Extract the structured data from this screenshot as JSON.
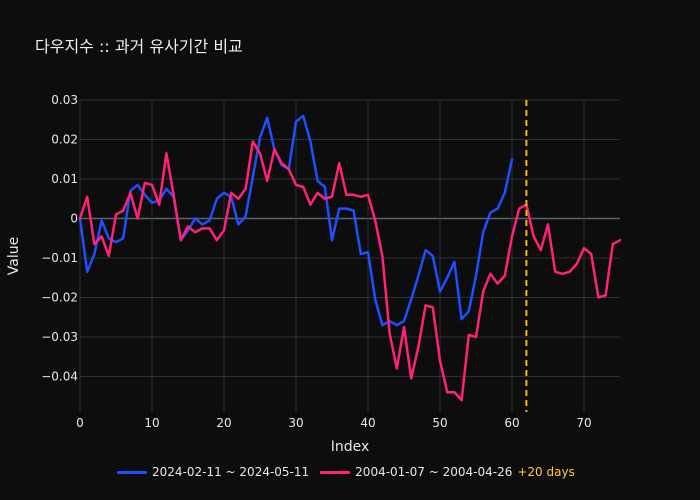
{
  "title": "다우지수 :: 과거 유사기간 비교",
  "chart_data": {
    "type": "line",
    "xlabel": "Index",
    "ylabel": "Value",
    "xlim": [
      0,
      75
    ],
    "ylim": [
      -0.049,
      0.03
    ],
    "x_ticks": [
      0,
      10,
      20,
      30,
      40,
      50,
      60,
      70
    ],
    "y_ticks": [
      0.03,
      0.02,
      0.01,
      0,
      -0.01,
      -0.02,
      -0.03,
      -0.04
    ],
    "y_tick_labels": [
      "0.03",
      "0.02",
      "0.01",
      "0",
      "−0.01",
      "−0.02",
      "−0.03",
      "−0.04"
    ],
    "grid": true,
    "legend_position": "bottom",
    "vline": {
      "x": 62,
      "color": "#f5b800",
      "style": "dashed"
    },
    "extra_label": "+20 days",
    "series": [
      {
        "name": "2024-02-11 ~ 2024-05-11",
        "color": "#1f4fff",
        "x": [
          0,
          1,
          2,
          3,
          4,
          5,
          6,
          7,
          8,
          9,
          10,
          11,
          12,
          13,
          14,
          15,
          16,
          17,
          18,
          19,
          20,
          21,
          22,
          23,
          24,
          25,
          26,
          27,
          28,
          29,
          30,
          31,
          32,
          33,
          34,
          35,
          36,
          37,
          38,
          39,
          40,
          41,
          42,
          43,
          44,
          45,
          46,
          47,
          48,
          49,
          50,
          51,
          52,
          53,
          54,
          55,
          56,
          57,
          58,
          59,
          60,
          61
        ],
        "y": [
          0.0,
          -0.0135,
          -0.009,
          -0.0005,
          -0.005,
          -0.006,
          -0.005,
          0.007,
          0.0085,
          0.006,
          0.004,
          0.0045,
          0.0075,
          0.0055,
          -0.0055,
          -0.003,
          0.0,
          -0.0015,
          -0.0005,
          0.005,
          0.0065,
          0.0055,
          -0.0015,
          0.0005,
          0.0105,
          0.0205,
          0.0255,
          0.0175,
          0.0135,
          0.0125,
          0.0245,
          0.026,
          0.0195,
          0.0095,
          0.008,
          -0.0055,
          0.0025,
          0.0025,
          0.002,
          -0.009,
          -0.0085,
          -0.0205,
          -0.027,
          -0.026,
          -0.027,
          -0.026,
          -0.0205,
          -0.0145,
          -0.008,
          -0.0095,
          -0.0185,
          -0.015,
          -0.011,
          -0.0255,
          -0.0235,
          -0.0145,
          -0.0035,
          0.0015,
          0.0025,
          0.0065,
          0.015,
          null
        ]
      },
      {
        "name": "2004-01-07 ~ 2004-04-26",
        "color": "#ff2277",
        "x": [
          0,
          1,
          2,
          3,
          4,
          5,
          6,
          7,
          8,
          9,
          10,
          11,
          12,
          13,
          14,
          15,
          16,
          17,
          18,
          19,
          20,
          21,
          22,
          23,
          24,
          25,
          26,
          27,
          28,
          29,
          30,
          31,
          32,
          33,
          34,
          35,
          36,
          37,
          38,
          39,
          40,
          41,
          42,
          43,
          44,
          45,
          46,
          47,
          48,
          49,
          50,
          51,
          52,
          53,
          54,
          55,
          56,
          57,
          58,
          59,
          60,
          61,
          62,
          63,
          64,
          65,
          66,
          67,
          68,
          69,
          70,
          71,
          72,
          73,
          74,
          75
        ],
        "y": [
          0.0,
          0.0055,
          -0.0065,
          -0.0045,
          -0.0095,
          0.001,
          0.002,
          0.0065,
          0.0,
          0.009,
          0.0085,
          0.0035,
          0.0165,
          0.006,
          -0.0055,
          -0.002,
          -0.0035,
          -0.0025,
          -0.0025,
          -0.0055,
          -0.003,
          0.0065,
          0.005,
          0.0075,
          0.0195,
          0.0165,
          0.0095,
          0.0175,
          0.014,
          0.0125,
          0.0085,
          0.008,
          0.0035,
          0.0065,
          0.005,
          0.0055,
          0.014,
          0.006,
          0.006,
          0.0055,
          0.006,
          -0.0005,
          -0.0095,
          -0.029,
          -0.038,
          -0.0275,
          -0.0405,
          -0.0325,
          -0.022,
          -0.0225,
          -0.036,
          -0.044,
          -0.044,
          -0.046,
          -0.0295,
          -0.03,
          -0.0185,
          -0.014,
          -0.0165,
          -0.0145,
          -0.0045,
          0.0025,
          0.0035,
          -0.0045,
          -0.008,
          -0.0015,
          -0.0135,
          -0.014,
          -0.0135,
          -0.0115,
          -0.0075,
          -0.009,
          -0.02,
          -0.0195,
          -0.0065,
          -0.0055
        ]
      }
    ]
  }
}
